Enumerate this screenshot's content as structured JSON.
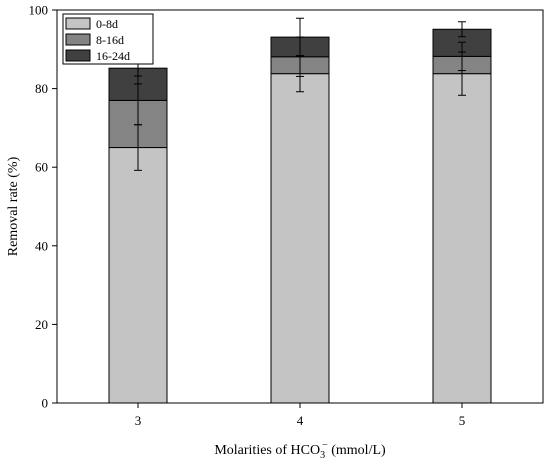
{
  "chart_data": {
    "type": "bar",
    "stacked": true,
    "categories": [
      "3",
      "4",
      "5"
    ],
    "series": [
      {
        "name": "0-8d",
        "values": [
          65.0,
          83.8,
          83.8
        ],
        "error": [
          5.8,
          4.6,
          5.5
        ],
        "color": "#c4c4c4"
      },
      {
        "name": "8-16d",
        "values": [
          12.0,
          4.3,
          4.4
        ],
        "error": [
          6.2,
          5.0,
          3.6
        ],
        "color": "#848484"
      },
      {
        "name": "16-24d",
        "values": [
          8.2,
          5.0,
          6.9
        ],
        "error": [
          4.0,
          4.8,
          1.9
        ],
        "color": "#404040"
      }
    ],
    "ylim": [
      0,
      100
    ],
    "yticks": [
      0,
      20,
      40,
      60,
      80,
      100
    ],
    "xlabel": "Molarities of HCO",
    "xlabel_sub": "3",
    "xlabel_sup": "−",
    "xlabel_suffix": " (mmol/L)",
    "ylabel": "Removal rate (%)",
    "legend_position": "top-left",
    "grid": false
  }
}
